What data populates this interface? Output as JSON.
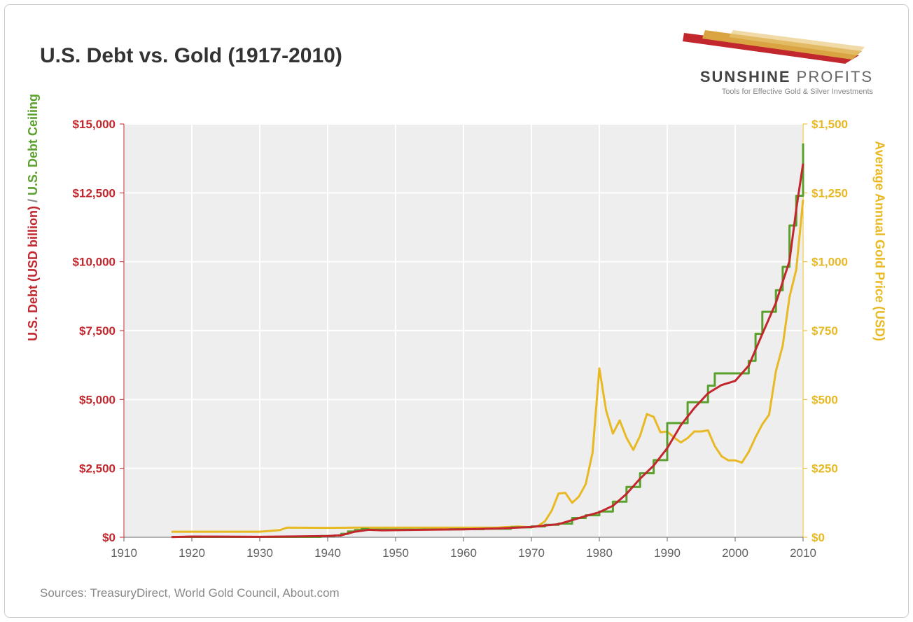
{
  "title": "U.S. Debt vs. Gold (1917-2010)",
  "logo": {
    "name": "SUNSHINE PROFITS",
    "name_bold": "SUNSHINE",
    "name_light": " PROFITS",
    "tagline": "Tools for Effective Gold & Silver Investments",
    "swoosh_colors": [
      "#c1272d",
      "#d9a441",
      "#e8c77a"
    ]
  },
  "sources": "Sources: TreasuryDirect, World Gold Council, About.com",
  "chart": {
    "type": "line-dual-axis",
    "background_color": "#eeeeee",
    "grid_color": "#ffffff",
    "axis_color": "#646464",
    "line_width": 3,
    "x": {
      "min": 1910,
      "max": 2010,
      "ticks": [
        1910,
        1920,
        1930,
        1940,
        1950,
        1960,
        1970,
        1980,
        1990,
        2000,
        2010
      ],
      "tick_labels": [
        "1910",
        "1920",
        "1930",
        "1940",
        "1950",
        "1960",
        "1970",
        "1980",
        "1990",
        "2000",
        "2010"
      ],
      "tick_fontsize": 17,
      "tick_color": "#646464"
    },
    "y_left": {
      "min": 0,
      "max": 15000,
      "ticks": [
        0,
        2500,
        5000,
        7500,
        10000,
        12500,
        15000
      ],
      "tick_labels": [
        "$0",
        "$2,500",
        "$5,000",
        "$7,500",
        "$10,000",
        "$12,500",
        "$15,000"
      ],
      "tick_fontsize": 17,
      "title_parts": [
        {
          "text": "U.S. Debt (USD billion)",
          "color": "#c1272d"
        },
        {
          "text": "  /  ",
          "color": "#888888"
        },
        {
          "text": "U.S. Debt Ceiling",
          "color": "#5aa02c"
        }
      ]
    },
    "y_right": {
      "min": 0,
      "max": 1500,
      "ticks": [
        0,
        250,
        500,
        750,
        1000,
        1250,
        1500
      ],
      "tick_labels": [
        "$0",
        "$250",
        "$500",
        "$750",
        "$1,000",
        "$1,250",
        "$1,500"
      ],
      "tick_fontsize": 17,
      "title": "Average Annual Gold Price (USD)",
      "title_color": "#e8b923"
    },
    "series": {
      "debt": {
        "color": "#c1272d",
        "axis": "left",
        "points": [
          [
            1917,
            5
          ],
          [
            1920,
            26
          ],
          [
            1925,
            21
          ],
          [
            1930,
            16
          ],
          [
            1935,
            29
          ],
          [
            1940,
            43
          ],
          [
            1942,
            72
          ],
          [
            1944,
            201
          ],
          [
            1946,
            269
          ],
          [
            1948,
            252
          ],
          [
            1950,
            257
          ],
          [
            1955,
            274
          ],
          [
            1960,
            286
          ],
          [
            1965,
            317
          ],
          [
            1970,
            371
          ],
          [
            1972,
            427
          ],
          [
            1974,
            475
          ],
          [
            1976,
            620
          ],
          [
            1978,
            772
          ],
          [
            1980,
            908
          ],
          [
            1982,
            1142
          ],
          [
            1984,
            1573
          ],
          [
            1986,
            2125
          ],
          [
            1988,
            2602
          ],
          [
            1990,
            3233
          ],
          [
            1992,
            4065
          ],
          [
            1994,
            4693
          ],
          [
            1996,
            5225
          ],
          [
            1998,
            5526
          ],
          [
            2000,
            5674
          ],
          [
            2002,
            6228
          ],
          [
            2004,
            7379
          ],
          [
            2006,
            8507
          ],
          [
            2008,
            10025
          ],
          [
            2009,
            11910
          ],
          [
            2010,
            13562
          ]
        ]
      },
      "ceiling": {
        "color": "#5aa02c",
        "axis": "left",
        "step": true,
        "points": [
          [
            1917,
            12
          ],
          [
            1939,
            45
          ],
          [
            1941,
            65
          ],
          [
            1942,
            125
          ],
          [
            1943,
            210
          ],
          [
            1944,
            260
          ],
          [
            1945,
            300
          ],
          [
            1946,
            275
          ],
          [
            1954,
            281
          ],
          [
            1958,
            288
          ],
          [
            1960,
            293
          ],
          [
            1963,
            309
          ],
          [
            1967,
            358
          ],
          [
            1970,
            395
          ],
          [
            1972,
            450
          ],
          [
            1974,
            495
          ],
          [
            1976,
            700
          ],
          [
            1978,
            798
          ],
          [
            1980,
            935
          ],
          [
            1982,
            1290
          ],
          [
            1984,
            1823
          ],
          [
            1986,
            2323
          ],
          [
            1988,
            2800
          ],
          [
            1990,
            4145
          ],
          [
            1993,
            4900
          ],
          [
            1996,
            5500
          ],
          [
            1997,
            5950
          ],
          [
            2002,
            6400
          ],
          [
            2003,
            7384
          ],
          [
            2004,
            8184
          ],
          [
            2006,
            8965
          ],
          [
            2007,
            9815
          ],
          [
            2008,
            11315
          ],
          [
            2009,
            12394
          ],
          [
            2010,
            14294
          ]
        ]
      },
      "gold": {
        "color": "#e8b923",
        "axis": "right",
        "points": [
          [
            1917,
            20
          ],
          [
            1920,
            20
          ],
          [
            1925,
            20
          ],
          [
            1930,
            20
          ],
          [
            1933,
            26
          ],
          [
            1934,
            35
          ],
          [
            1940,
            34
          ],
          [
            1945,
            35
          ],
          [
            1950,
            35
          ],
          [
            1955,
            35
          ],
          [
            1960,
            35
          ],
          [
            1965,
            35
          ],
          [
            1968,
            39
          ],
          [
            1970,
            36
          ],
          [
            1971,
            41
          ],
          [
            1972,
            58
          ],
          [
            1973,
            97
          ],
          [
            1974,
            159
          ],
          [
            1975,
            161
          ],
          [
            1976,
            125
          ],
          [
            1977,
            148
          ],
          [
            1978,
            193
          ],
          [
            1979,
            307
          ],
          [
            1980,
            613
          ],
          [
            1981,
            460
          ],
          [
            1982,
            376
          ],
          [
            1983,
            424
          ],
          [
            1984,
            361
          ],
          [
            1985,
            317
          ],
          [
            1986,
            368
          ],
          [
            1987,
            447
          ],
          [
            1988,
            437
          ],
          [
            1989,
            381
          ],
          [
            1990,
            384
          ],
          [
            1991,
            362
          ],
          [
            1992,
            344
          ],
          [
            1993,
            360
          ],
          [
            1994,
            384
          ],
          [
            1995,
            384
          ],
          [
            1996,
            388
          ],
          [
            1997,
            331
          ],
          [
            1998,
            294
          ],
          [
            1999,
            279
          ],
          [
            2000,
            279
          ],
          [
            2001,
            271
          ],
          [
            2002,
            310
          ],
          [
            2003,
            363
          ],
          [
            2004,
            410
          ],
          [
            2005,
            445
          ],
          [
            2006,
            603
          ],
          [
            2007,
            695
          ],
          [
            2008,
            872
          ],
          [
            2009,
            972
          ],
          [
            2010,
            1225
          ]
        ]
      }
    }
  }
}
